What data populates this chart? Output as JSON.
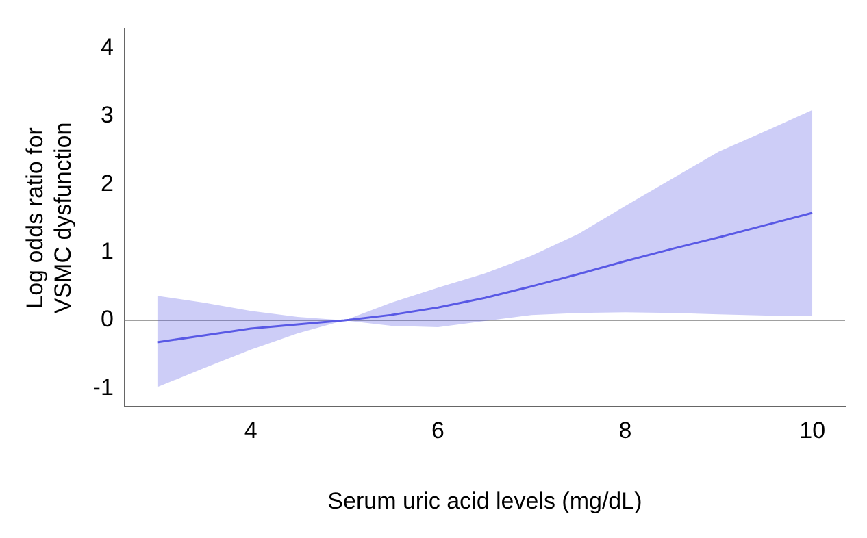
{
  "chart_data": {
    "type": "line",
    "xlabel": "Serum uric acid levels (mg/dL)",
    "ylabel": "Log odds ratio for VSMC dysfunction",
    "x": [
      3,
      3.5,
      4,
      4.5,
      5,
      5.5,
      6,
      6.5,
      7,
      7.5,
      8,
      8.5,
      9,
      9.5,
      10
    ],
    "series": [
      {
        "color": "#5a5ae6",
        "values": [
          -0.32,
          -0.22,
          -0.12,
          -0.06,
          0,
          0.08,
          0.19,
          0.33,
          0.5,
          0.68,
          0.87,
          1.05,
          1.22,
          1.4,
          1.58
        ],
        "lower": [
          -0.98,
          -0.7,
          -0.43,
          -0.19,
          0,
          -0.08,
          -0.1,
          -0.01,
          0.08,
          0.11,
          0.12,
          0.11,
          0.09,
          0.07,
          0.06
        ],
        "upper": [
          0.36,
          0.26,
          0.14,
          0.05,
          0,
          0.26,
          0.48,
          0.69,
          0.95,
          1.27,
          1.68,
          2.08,
          2.48,
          2.78,
          3.09
        ]
      }
    ],
    "xlim": [
      2.65,
      10.35
    ],
    "xticks": [
      4,
      6,
      8,
      10
    ],
    "ylim": [
      -1.27,
      4.28
    ],
    "yticks": [
      -1,
      0,
      1,
      2,
      3,
      4
    ],
    "ref_lines": [
      {
        "axis": "y",
        "value": 0,
        "color": "#a0a0a0"
      }
    ],
    "grid": false,
    "legend": false,
    "marker": "none",
    "line_style": "solid"
  }
}
